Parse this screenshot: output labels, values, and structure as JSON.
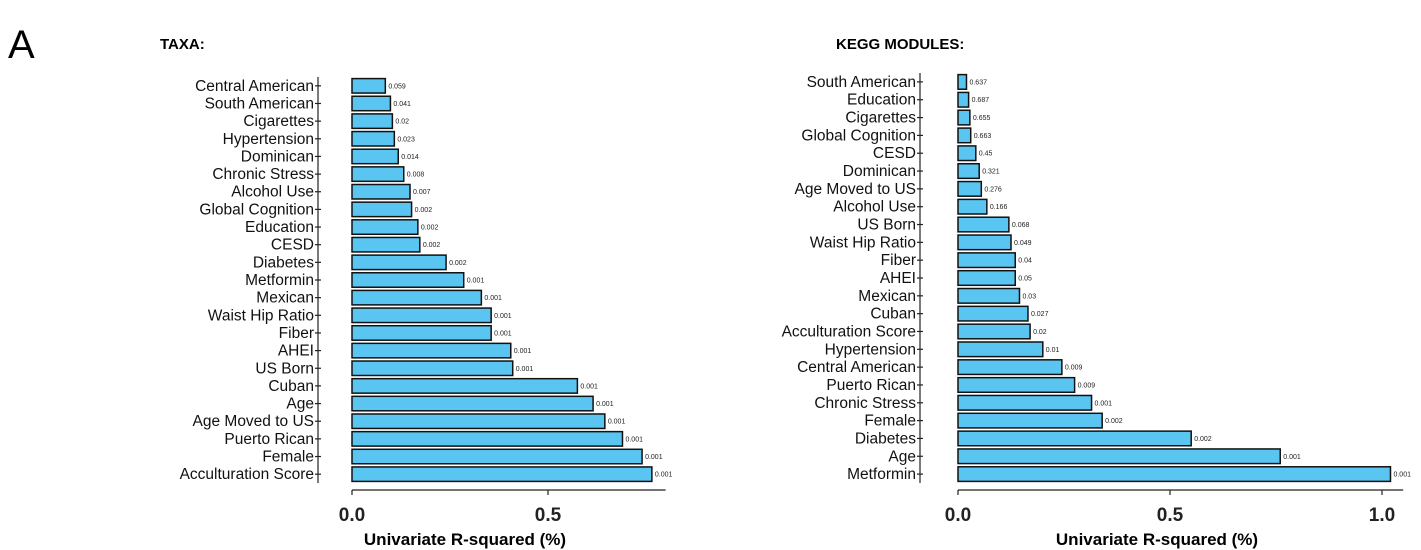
{
  "panel_label": "A",
  "chart_data": [
    {
      "type": "bar",
      "orientation": "horizontal",
      "title": "TAXA:",
      "xlabel": "Univariate R-squared (%)",
      "xlim": [
        0,
        0.8
      ],
      "xticks": [
        0.0,
        0.5
      ],
      "xtick_labels": [
        "0.0",
        "0.5"
      ],
      "grid": false,
      "categories": [
        "Central American",
        "South American",
        "Cigarettes",
        "Hypertension",
        "Dominican",
        "Chronic Stress",
        "Alcohol Use",
        "Global Cognition",
        "Education",
        "CESD",
        "Diabetes",
        "Metformin",
        "Mexican",
        "Waist Hip Ratio",
        "Fiber",
        "AHEI",
        "US Born",
        "Cuban",
        "Age",
        "Age Moved to US",
        "Puerto Rican",
        "Female",
        "Acculturation Score"
      ],
      "values": [
        0.085,
        0.098,
        0.103,
        0.108,
        0.118,
        0.132,
        0.148,
        0.152,
        0.168,
        0.173,
        0.24,
        0.285,
        0.33,
        0.355,
        0.355,
        0.405,
        0.41,
        0.575,
        0.615,
        0.645,
        0.69,
        0.74,
        0.765
      ],
      "value_labels": [
        "0.059",
        "0.041",
        "0.02",
        "0.023",
        "0.014",
        "0.008",
        "0.007",
        "0.002",
        "0.002",
        "0.002",
        "0.002",
        "0.001",
        "0.001",
        "0.001",
        "0.001",
        "0.001",
        "0.001",
        "0.001",
        "0.001",
        "0.001",
        "0.001",
        "0.001",
        "0.001"
      ],
      "bar_color": "#5bc5f2"
    },
    {
      "type": "bar",
      "orientation": "horizontal",
      "title": "KEGG MODULES:",
      "xlabel": "Univariate R-squared (%)",
      "xlim": [
        0,
        1.05
      ],
      "xticks": [
        0.0,
        0.5,
        1.0
      ],
      "xtick_labels": [
        "0.0",
        "0.5",
        "1.0"
      ],
      "grid": false,
      "categories": [
        "South American",
        "Education",
        "Cigarettes",
        "Global Cognition",
        "CESD",
        "Dominican",
        "Age Moved to US",
        "Alcohol Use",
        "US Born",
        "Waist Hip Ratio",
        "Fiber",
        "AHEI",
        "Mexican",
        "Cuban",
        "Acculturation Score",
        "Hypertension",
        "Central American",
        "Puerto Rican",
        "Chronic Stress",
        "Female",
        "Diabetes",
        "Age",
        "Metformin"
      ],
      "values": [
        0.02,
        0.025,
        0.028,
        0.03,
        0.042,
        0.05,
        0.055,
        0.068,
        0.12,
        0.125,
        0.135,
        0.135,
        0.145,
        0.165,
        0.17,
        0.2,
        0.245,
        0.275,
        0.315,
        0.34,
        0.55,
        0.76,
        1.02
      ],
      "value_labels": [
        "0.637",
        "0.687",
        "0.655",
        "0.663",
        "0.45",
        "0.321",
        "0.276",
        "0.166",
        "0.068",
        "0.049",
        "0.04",
        "0.05",
        "0.03",
        "0.027",
        "0.02",
        "0.01",
        "0.009",
        "0.009",
        "0.001",
        "0.002",
        "0.002",
        "0.001",
        "0.001"
      ],
      "bar_color": "#5bc5f2"
    }
  ]
}
